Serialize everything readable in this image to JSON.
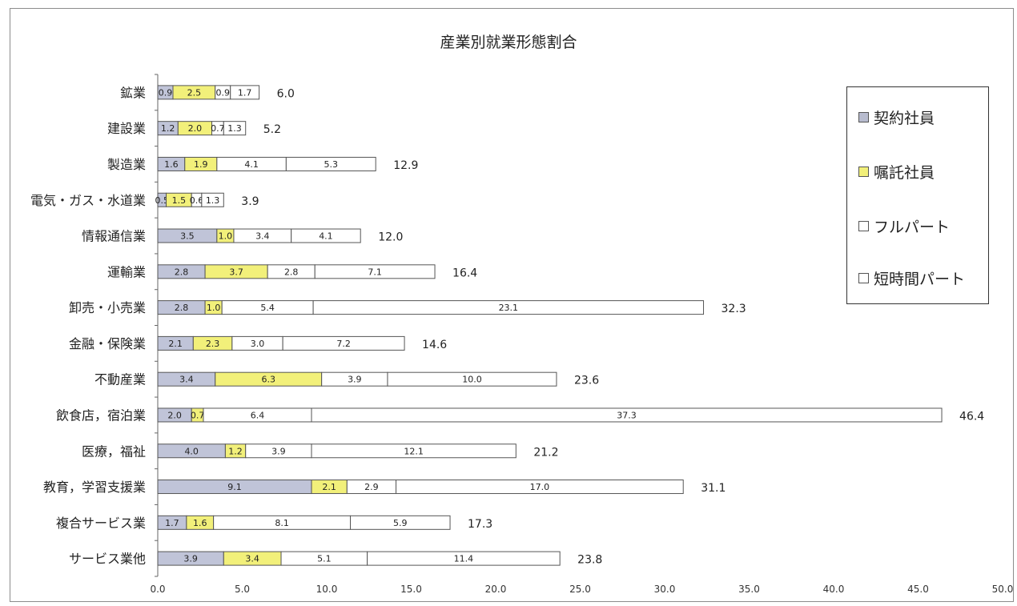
{
  "chart_data": {
    "type": "bar",
    "orientation": "horizontal",
    "stacked": true,
    "title": "産業別就業形態割合",
    "categories": [
      "鉱業",
      "建設業",
      "製造業",
      "電気・ガス・水道業",
      "情報通信業",
      "運輸業",
      "卸売・小売業",
      "金融・保険業",
      "不動産業",
      "飲食店，宿泊業",
      "医療，福祉",
      "教育，学習支援業",
      "複合サービス業",
      "サービス業他"
    ],
    "series": [
      {
        "name": "契約社員",
        "color": "#c0c4d8",
        "values": [
          0.9,
          1.2,
          1.6,
          0.5,
          3.5,
          2.8,
          2.8,
          2.1,
          3.4,
          2.0,
          4.0,
          9.1,
          1.7,
          3.9
        ]
      },
      {
        "name": "嘱託社員",
        "color": "#f2f07a",
        "values": [
          2.5,
          2.0,
          1.9,
          1.5,
          1.0,
          3.7,
          1.0,
          2.3,
          6.3,
          0.7,
          1.2,
          2.1,
          1.6,
          3.4
        ]
      },
      {
        "name": "フルパート",
        "color": "#ffffff",
        "values": [
          0.9,
          0.7,
          4.1,
          0.6,
          3.4,
          2.8,
          5.4,
          3.0,
          3.9,
          6.4,
          3.9,
          2.9,
          8.1,
          5.1
        ]
      },
      {
        "name": "短時間パート",
        "color": "#ffffff",
        "values": [
          1.7,
          1.3,
          5.3,
          1.3,
          4.1,
          7.1,
          23.1,
          7.2,
          10.0,
          37.3,
          12.1,
          17.0,
          5.9,
          11.4
        ]
      }
    ],
    "totals": [
      "6.0",
      "5.2",
      "12.9",
      "3.9",
      "12.0",
      "16.4",
      "32.3",
      "14.6",
      "23.6",
      "46.4",
      "21.2",
      "31.1",
      "17.3",
      "23.8"
    ],
    "xlim": [
      0,
      50
    ],
    "xticks": [
      "0.0",
      "5.0",
      "10.0",
      "15.0",
      "20.0",
      "25.0",
      "30.0",
      "35.0",
      "40.0",
      "45.0",
      "50.0"
    ],
    "grid": false,
    "legend_position": "right"
  },
  "legend": {
    "items": [
      {
        "label": "契約社員",
        "color": "#b8bccf"
      },
      {
        "label": "嘱託社員",
        "color": "#f2f07a"
      },
      {
        "label": "フルパート",
        "color": "#ffffff"
      },
      {
        "label": "短時間パート",
        "color": "#ffffff"
      }
    ]
  }
}
